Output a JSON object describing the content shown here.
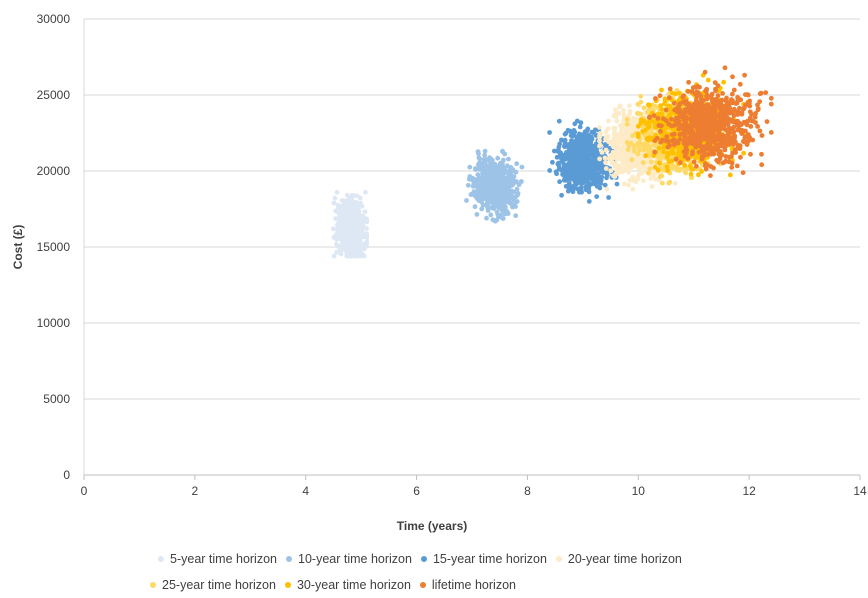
{
  "chart_data": {
    "type": "scatter",
    "xlabel": "Time (years)",
    "ylabel": "Cost (£)",
    "xlim": [
      0,
      14
    ],
    "ylim": [
      0,
      30000
    ],
    "x_ticks": [
      "0",
      "2",
      "4",
      "6",
      "8",
      "10",
      "12",
      "14"
    ],
    "y_ticks": [
      "0",
      "5000",
      "10000",
      "15000",
      "20000",
      "25000",
      "30000"
    ],
    "grid": "horizontal",
    "legend_position": "bottom",
    "series": [
      {
        "name": "5-year time horizon",
        "color": "#dde8f4",
        "center": [
          4.8,
          16200
        ],
        "spread": [
          0.12,
          900
        ],
        "range": [
          [
            4.5,
            5.1
          ],
          [
            14400,
            18600
          ]
        ]
      },
      {
        "name": "10-year time horizon",
        "color": "#9dc3e6",
        "center": [
          7.4,
          19000
        ],
        "spread": [
          0.18,
          850
        ],
        "range": [
          [
            6.9,
            7.9
          ],
          [
            16700,
            21300
          ]
        ]
      },
      {
        "name": "15-year time horizon",
        "color": "#5b9bd5",
        "center": [
          9.0,
          20700
        ],
        "spread": [
          0.22,
          900
        ],
        "range": [
          [
            8.4,
            9.7
          ],
          [
            18000,
            23300
          ]
        ]
      },
      {
        "name": "20-year time horizon",
        "color": "#fdebc8",
        "center": [
          10.0,
          21600
        ],
        "spread": [
          0.28,
          1000
        ],
        "range": [
          [
            9.3,
            10.8
          ],
          [
            18800,
            24300
          ]
        ]
      },
      {
        "name": "25-year time horizon",
        "color": "#ffd966",
        "center": [
          10.6,
          22200
        ],
        "spread": [
          0.3,
          1100
        ],
        "range": [
          [
            9.8,
            11.6
          ],
          [
            19200,
            25300
          ]
        ]
      },
      {
        "name": "30-year time horizon",
        "color": "#ffc000",
        "center": [
          10.9,
          22700
        ],
        "spread": [
          0.32,
          1100
        ],
        "range": [
          [
            10.0,
            11.9
          ],
          [
            19500,
            26300
          ]
        ]
      },
      {
        "name": "lifetime horizon",
        "color": "#ed7d31",
        "center": [
          11.3,
          23000
        ],
        "spread": [
          0.4,
          1200
        ],
        "range": [
          [
            10.2,
            12.4
          ],
          [
            19700,
            27400
          ]
        ]
      }
    ]
  },
  "legend": {
    "rows": [
      [
        "5-year time horizon",
        "10-year time horizon",
        "15-year time horizon",
        "20-year time horizon"
      ],
      [
        "25-year time horizon",
        "30-year time horizon",
        "lifetime horizon"
      ]
    ]
  }
}
